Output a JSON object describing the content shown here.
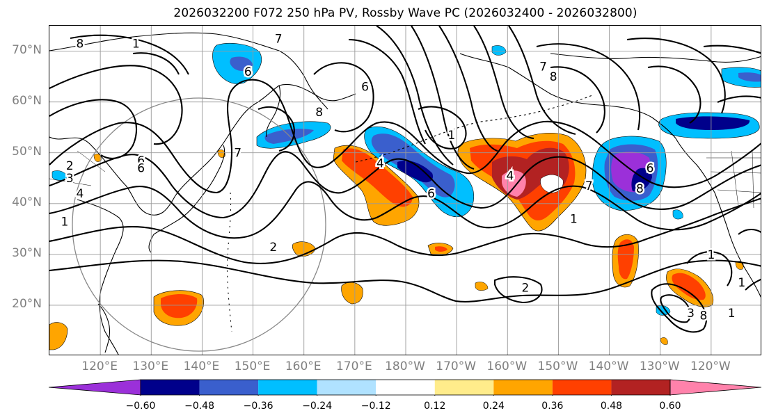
{
  "title": "2026032200 F072 250 hPa PV, Rossby Wave PC (2026032400 - 2026032800)",
  "lat_axis": {
    "labels": [
      {
        "lat": 70,
        "text": "70°N"
      },
      {
        "lat": 60,
        "text": "60°N"
      },
      {
        "lat": 50,
        "text": "50°N"
      },
      {
        "lat": 40,
        "text": "40°N"
      },
      {
        "lat": 30,
        "text": "30°N"
      },
      {
        "lat": 20,
        "text": "20°N"
      }
    ],
    "range": [
      10,
      75
    ]
  },
  "lon_axis": {
    "labels": [
      {
        "lon": 120,
        "text": "120°E"
      },
      {
        "lon": 130,
        "text": "130°E"
      },
      {
        "lon": 140,
        "text": "140°E"
      },
      {
        "lon": 150,
        "text": "150°E"
      },
      {
        "lon": 160,
        "text": "160°E"
      },
      {
        "lon": 170,
        "text": "170°E"
      },
      {
        "lon": 180,
        "text": "180°W"
      },
      {
        "lon": 190,
        "text": "170°W"
      },
      {
        "lon": 200,
        "text": "160°W"
      },
      {
        "lon": 210,
        "text": "150°W"
      },
      {
        "lon": 220,
        "text": "140°W"
      },
      {
        "lon": 230,
        "text": "130°W"
      },
      {
        "lon": 240,
        "text": "120°W"
      }
    ],
    "range": [
      110,
      250
    ]
  },
  "colorbar": {
    "colors": [
      "#9b30d9",
      "#00008b",
      "#3a5fcd",
      "#00bfff",
      "#b0e2ff",
      "#ffffff",
      "#ffec8b",
      "#ffa500",
      "#ff4000",
      "#b22222",
      "#ff82ab"
    ],
    "ticks": [
      "−0.60",
      "−0.48",
      "−0.36",
      "−0.24",
      "−0.12",
      "0.12",
      "0.24",
      "0.36",
      "0.48",
      "0.60"
    ]
  },
  "contour_labels": [
    {
      "text": "8",
      "lon": 116,
      "lat": 71.5
    },
    {
      "text": "1",
      "lon": 127,
      "lat": 71.5
    },
    {
      "text": "7",
      "lon": 155,
      "lat": 72.5
    },
    {
      "text": "6",
      "lon": 149,
      "lat": 66
    },
    {
      "text": "6",
      "lon": 172,
      "lat": 63
    },
    {
      "text": "8",
      "lon": 163,
      "lat": 58
    },
    {
      "text": "7",
      "lon": 207,
      "lat": 67
    },
    {
      "text": "8",
      "lon": 209,
      "lat": 65
    },
    {
      "text": "1",
      "lon": 189,
      "lat": 53.5
    },
    {
      "text": "7",
      "lon": 147,
      "lat": 50
    },
    {
      "text": "2",
      "lon": 114,
      "lat": 47.5
    },
    {
      "text": "6",
      "lon": 128,
      "lat": 48.5
    },
    {
      "text": "6",
      "lon": 128,
      "lat": 47
    },
    {
      "text": "3",
      "lon": 114,
      "lat": 45
    },
    {
      "text": "4",
      "lon": 116,
      "lat": 42
    },
    {
      "text": "1",
      "lon": 113,
      "lat": 36.5
    },
    {
      "text": "4",
      "lon": 175,
      "lat": 48
    },
    {
      "text": "6",
      "lon": 185,
      "lat": 42
    },
    {
      "text": "4",
      "lon": 200.5,
      "lat": 45.5
    },
    {
      "text": "7",
      "lon": 216,
      "lat": 43.5
    },
    {
      "text": "8",
      "lon": 226,
      "lat": 43
    },
    {
      "text": "6",
      "lon": 228,
      "lat": 47
    },
    {
      "text": "1",
      "lon": 213,
      "lat": 37
    },
    {
      "text": "2",
      "lon": 154,
      "lat": 31.5
    },
    {
      "text": "2",
      "lon": 203.5,
      "lat": 23.5
    },
    {
      "text": "1",
      "lon": 240,
      "lat": 30
    },
    {
      "text": "3",
      "lon": 236,
      "lat": 18.5
    },
    {
      "text": "8",
      "lon": 238.5,
      "lat": 18
    },
    {
      "text": "1",
      "lon": 244,
      "lat": 18.5
    },
    {
      "text": "1",
      "lon": 246,
      "lat": 24.5
    }
  ]
}
